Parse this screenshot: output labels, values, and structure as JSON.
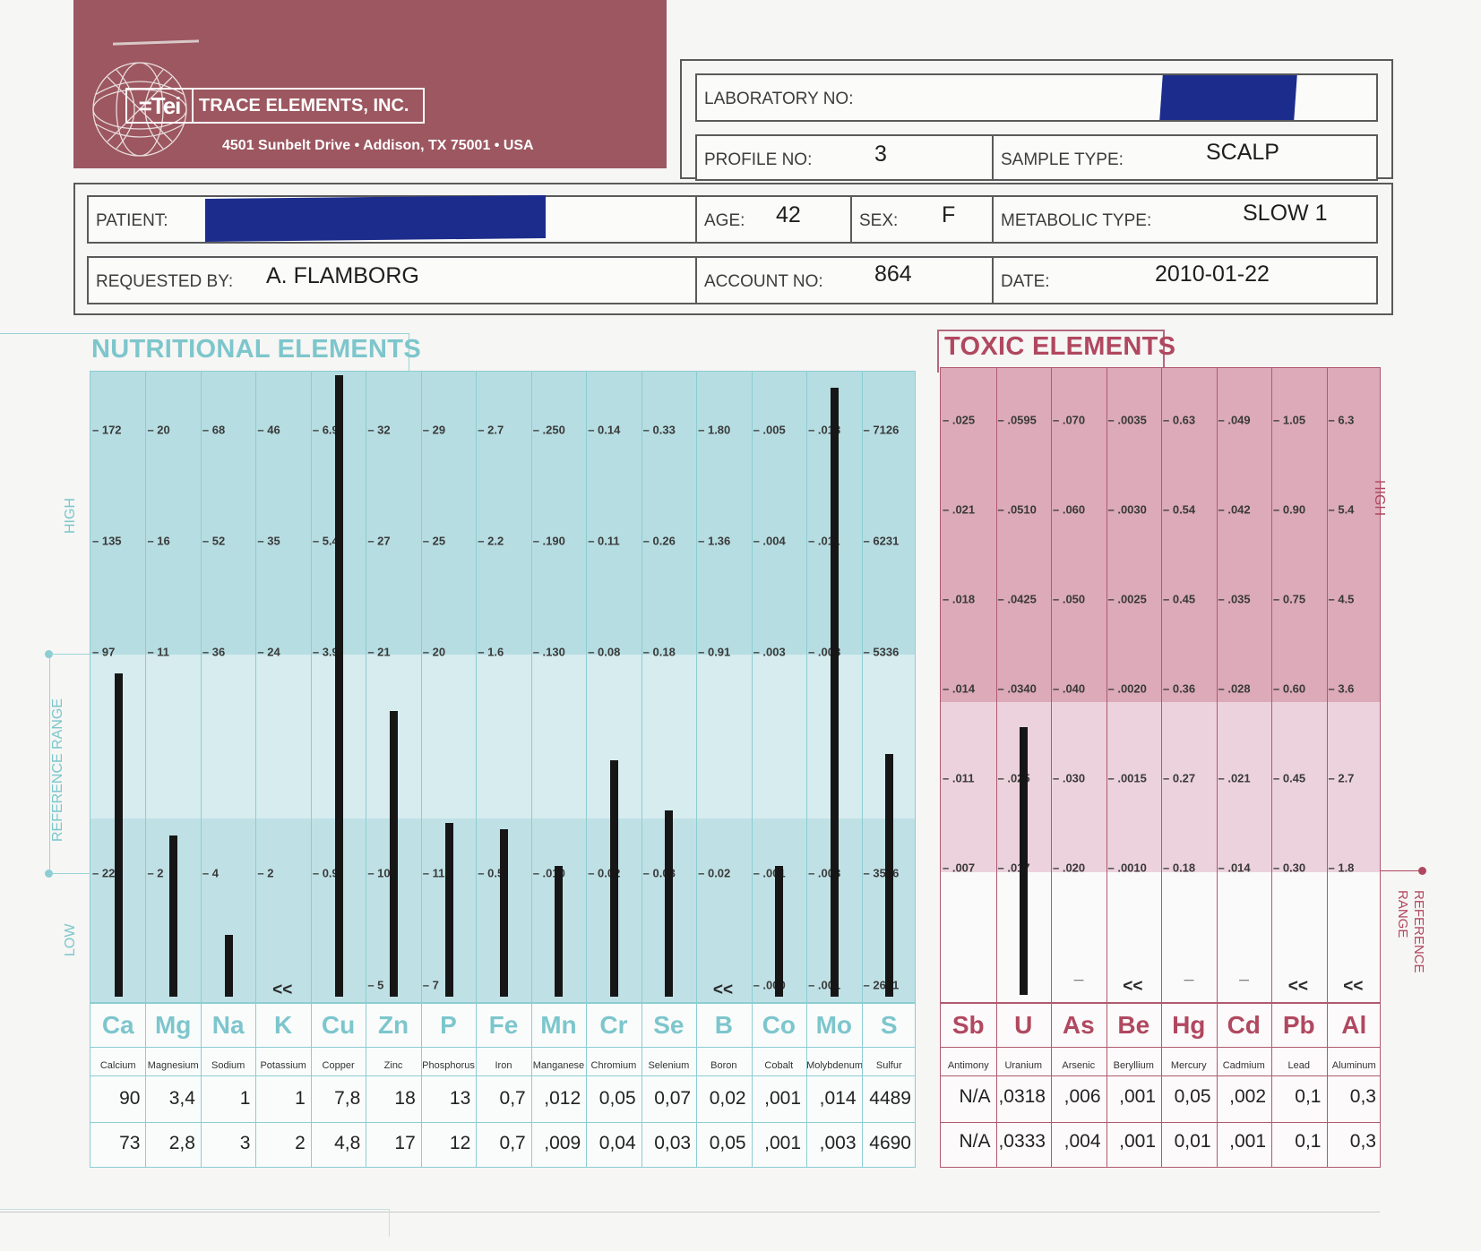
{
  "header": {
    "logo_mark": "=Tei",
    "company_name": "TRACE ELEMENTS, INC.",
    "address": "4501 Sunbelt Drive • Addison, TX  75001 • USA"
  },
  "form": {
    "laboratory_no_label": "LABORATORY NO:",
    "laboratory_no_value": "",
    "profile_no_label": "PROFILE NO:",
    "profile_no_value": "3",
    "sample_type_label": "SAMPLE TYPE:",
    "sample_type_value": "SCALP",
    "patient_label": "PATIENT:",
    "patient_value": "",
    "age_label": "AGE:",
    "age_value": "42",
    "sex_label": "SEX:",
    "sex_value": "F",
    "metabolic_type_label": "METABOLIC TYPE:",
    "metabolic_type_value": "SLOW 1",
    "requested_by_label": "REQUESTED BY:",
    "requested_by_value": "A. FLAMBORG",
    "account_no_label": "ACCOUNT NO:",
    "account_no_value": "864",
    "date_label": "DATE:",
    "date_value": "2010-01-22"
  },
  "nutritional": {
    "title": "NUTRITIONAL ELEMENTS",
    "side_high": "HIGH",
    "side_low": "LOW",
    "side_reference": "REFERENCE RANGE",
    "elements": [
      {
        "symbol": "Ca",
        "name": "Calcium",
        "ticks": [
          "172",
          "135",
          "97",
          "22"
        ],
        "bottom_tick": "",
        "level": 0.52,
        "marker": "",
        "result": "90",
        "result2": "73"
      },
      {
        "symbol": "Mg",
        "name": "Magnesium",
        "ticks": [
          "20",
          "16",
          "11",
          "2"
        ],
        "bottom_tick": "",
        "level": 0.26,
        "marker": "",
        "result": "3,4",
        "result2": "2,8"
      },
      {
        "symbol": "Na",
        "name": "Sodium",
        "ticks": [
          "68",
          "52",
          "36",
          "4"
        ],
        "bottom_tick": "",
        "level": 0.1,
        "marker": "",
        "result": "1",
        "result2": "3"
      },
      {
        "symbol": "K",
        "name": "Potassium",
        "ticks": [
          "46",
          "35",
          "24",
          "2"
        ],
        "bottom_tick": "",
        "level": 0,
        "marker": "<<",
        "result": "1",
        "result2": "2"
      },
      {
        "symbol": "Cu",
        "name": "Copper",
        "ticks": [
          "6.9",
          "5.4",
          "3.9",
          "0.9"
        ],
        "bottom_tick": "",
        "level": 1.0,
        "marker": "",
        "result": "7,8",
        "result2": "4,8"
      },
      {
        "symbol": "Zn",
        "name": "Zinc",
        "ticks": [
          "32",
          "27",
          "21",
          "10"
        ],
        "bottom_tick": "5",
        "level": 0.46,
        "marker": "",
        "result": "18",
        "result2": "17"
      },
      {
        "symbol": "P",
        "name": "Phosphorus",
        "ticks": [
          "29",
          "25",
          "20",
          "11"
        ],
        "bottom_tick": "7",
        "level": 0.28,
        "marker": "",
        "result": "13",
        "result2": "12"
      },
      {
        "symbol": "Fe",
        "name": "Iron",
        "ticks": [
          "2.7",
          "2.2",
          "1.6",
          "0.5"
        ],
        "bottom_tick": "",
        "level": 0.27,
        "marker": "",
        "result": "0,7",
        "result2": "0,7"
      },
      {
        "symbol": "Mn",
        "name": "Manganese",
        "ticks": [
          ".250",
          ".190",
          ".130",
          ".010"
        ],
        "bottom_tick": "",
        "level": 0.21,
        "marker": "",
        "result": ",012",
        "result2": ",009"
      },
      {
        "symbol": "Cr",
        "name": "Chromium",
        "ticks": [
          "0.14",
          "0.11",
          "0.08",
          "0.02"
        ],
        "bottom_tick": "",
        "level": 0.38,
        "marker": "",
        "result": "0,05",
        "result2": "0,04"
      },
      {
        "symbol": "Se",
        "name": "Selenium",
        "ticks": [
          "0.33",
          "0.26",
          "0.18",
          "0.03"
        ],
        "bottom_tick": "",
        "level": 0.3,
        "marker": "",
        "result": "0,07",
        "result2": "0,03"
      },
      {
        "symbol": "B",
        "name": "Boron",
        "ticks": [
          "1.80",
          "1.36",
          "0.91",
          "0.02"
        ],
        "bottom_tick": "",
        "level": 0,
        "marker": "<<",
        "result": "0,02",
        "result2": "0,05"
      },
      {
        "symbol": "Co",
        "name": "Cobalt",
        "ticks": [
          ".005",
          ".004",
          ".003",
          ".001"
        ],
        "bottom_tick": ".000",
        "level": 0.21,
        "marker": "",
        "result": ",001",
        "result2": ",001"
      },
      {
        "symbol": "Mo",
        "name": "Molybdenum",
        "ticks": [
          ".013",
          ".011",
          ".008",
          ".003"
        ],
        "bottom_tick": ".001",
        "level": 0.98,
        "marker": "",
        "result": ",014",
        "result2": ",003"
      },
      {
        "symbol": "S",
        "name": "Sulfur",
        "ticks": [
          "7126",
          "6231",
          "5336",
          "3546"
        ],
        "bottom_tick": "2651",
        "level": 0.39,
        "marker": "",
        "result": "4489",
        "result2": "4690"
      }
    ]
  },
  "toxic": {
    "title": "TOXIC ELEMENTS",
    "side_high": "HIGH",
    "side_reference": "REFERENCE RANGE",
    "elements": [
      {
        "symbol": "Sb",
        "name": "Antimony",
        "ticks": [
          ".025",
          ".021",
          ".018",
          ".014",
          ".011",
          ".007"
        ],
        "level": 0,
        "marker": "",
        "result": "N/A",
        "result2": "N/A"
      },
      {
        "symbol": "U",
        "name": "Uranium",
        "ticks": [
          ".0595",
          ".0510",
          ".0425",
          ".0340",
          ".025",
          ".017"
        ],
        "level": 0.43,
        "marker": "",
        "result": ",0318",
        "result2": ",0333"
      },
      {
        "symbol": "As",
        "name": "Arsenic",
        "ticks": [
          ".070",
          ".060",
          ".050",
          ".040",
          ".030",
          ".020"
        ],
        "level": 0,
        "marker": "_",
        "result": ",006",
        "result2": ",004"
      },
      {
        "symbol": "Be",
        "name": "Beryllium",
        "ticks": [
          ".0035",
          ".0030",
          ".0025",
          ".0020",
          ".0015",
          ".0010"
        ],
        "level": 0,
        "marker": "<<",
        "result": ",001",
        "result2": ",001"
      },
      {
        "symbol": "Hg",
        "name": "Mercury",
        "ticks": [
          "0.63",
          "0.54",
          "0.45",
          "0.36",
          "0.27",
          "0.18"
        ],
        "level": 0,
        "marker": "_",
        "result": "0,05",
        "result2": "0,01"
      },
      {
        "symbol": "Cd",
        "name": "Cadmium",
        "ticks": [
          ".049",
          ".042",
          ".035",
          ".028",
          ".021",
          ".014"
        ],
        "level": 0,
        "marker": "_",
        "result": ",002",
        "result2": ",001"
      },
      {
        "symbol": "Pb",
        "name": "Lead",
        "ticks": [
          "1.05",
          "0.90",
          "0.75",
          "0.60",
          "0.45",
          "0.30"
        ],
        "level": 0,
        "marker": "<<",
        "result": "0,1",
        "result2": "0,1"
      },
      {
        "symbol": "Al",
        "name": "Aluminum",
        "ticks": [
          "6.3",
          "5.4",
          "4.5",
          "3.6",
          "2.7",
          "1.8"
        ],
        "level": 0,
        "marker": "<<",
        "result": "0,3",
        "result2": "0,3"
      }
    ]
  },
  "colors": {
    "header_band": "#9c5760",
    "nutritional_accent": "#7cc6cc",
    "toxic_accent": "#b04860",
    "bar": "#161616",
    "redaction": "#1c2c8c"
  }
}
